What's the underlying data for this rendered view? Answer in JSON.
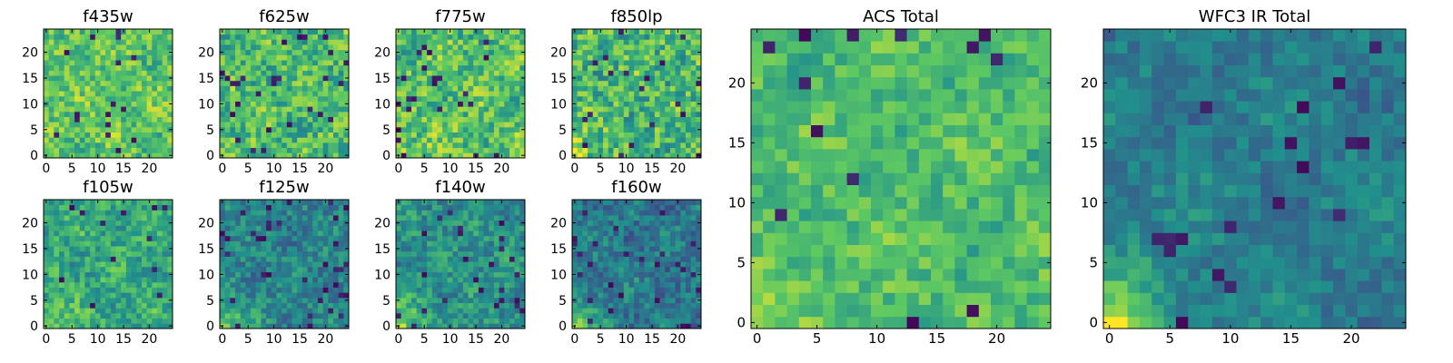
{
  "figure": {
    "colormap": "viridis",
    "colormap_stops": [
      "#440154",
      "#3b528b",
      "#21918c",
      "#5ec962",
      "#fde725"
    ]
  },
  "chart_data": [
    {
      "type": "heatmap",
      "title": "f435w",
      "grid_size": [
        25,
        25
      ],
      "x_ticks": [
        0,
        5,
        10,
        15,
        20
      ],
      "y_ticks": [
        0,
        5,
        10,
        15,
        20
      ],
      "x_tick_labels": [
        "0",
        "5",
        "10",
        "15",
        "20"
      ],
      "y_tick_labels": [
        "0",
        "5",
        "10",
        "15",
        "20"
      ],
      "xlim": [
        -0.5,
        24.5
      ],
      "ylim": [
        -0.5,
        24.5
      ],
      "level_mean": 0.72,
      "level_spread": 0.18,
      "corner_glow": 0.05,
      "dark_rate": 0.03,
      "seed": 11
    },
    {
      "type": "heatmap",
      "title": "f625w",
      "grid_size": [
        25,
        25
      ],
      "x_ticks": [
        0,
        5,
        10,
        15,
        20
      ],
      "y_ticks": [
        0,
        5,
        10,
        15,
        20
      ],
      "x_tick_labels": [
        "0",
        "5",
        "10",
        "15",
        "20"
      ],
      "y_tick_labels": [
        "0",
        "5",
        "10",
        "15",
        "20"
      ],
      "xlim": [
        -0.5,
        24.5
      ],
      "ylim": [
        -0.5,
        24.5
      ],
      "level_mean": 0.68,
      "level_spread": 0.2,
      "corner_glow": 0.18,
      "dark_rate": 0.04,
      "seed": 23
    },
    {
      "type": "heatmap",
      "title": "f775w",
      "grid_size": [
        25,
        25
      ],
      "x_ticks": [
        0,
        5,
        10,
        15,
        20
      ],
      "y_ticks": [
        0,
        5,
        10,
        15,
        20
      ],
      "x_tick_labels": [
        "0",
        "5",
        "10",
        "15",
        "20"
      ],
      "y_tick_labels": [
        "0",
        "5",
        "10",
        "15",
        "20"
      ],
      "xlim": [
        -0.5,
        24.5
      ],
      "ylim": [
        -0.5,
        24.5
      ],
      "level_mean": 0.7,
      "level_spread": 0.2,
      "corner_glow": 0.2,
      "dark_rate": 0.04,
      "seed": 37
    },
    {
      "type": "heatmap",
      "title": "f850lp",
      "grid_size": [
        25,
        25
      ],
      "x_ticks": [
        0,
        5,
        10,
        15,
        20
      ],
      "y_ticks": [
        0,
        5,
        10,
        15,
        20
      ],
      "x_tick_labels": [
        "0",
        "5",
        "10",
        "15",
        "20"
      ],
      "y_tick_labels": [
        "0",
        "5",
        "10",
        "15",
        "20"
      ],
      "xlim": [
        -0.5,
        24.5
      ],
      "ylim": [
        -0.5,
        24.5
      ],
      "level_mean": 0.66,
      "level_spread": 0.22,
      "corner_glow": 0.25,
      "dark_rate": 0.04,
      "seed": 41
    },
    {
      "type": "heatmap",
      "title": "f105w",
      "grid_size": [
        25,
        25
      ],
      "x_ticks": [
        0,
        5,
        10,
        15,
        20
      ],
      "y_ticks": [
        0,
        5,
        10,
        15,
        20
      ],
      "x_tick_labels": [
        "0",
        "5",
        "10",
        "15",
        "20"
      ],
      "y_tick_labels": [
        "0",
        "5",
        "10",
        "15",
        "20"
      ],
      "xlim": [
        -0.5,
        24.5
      ],
      "ylim": [
        -0.5,
        24.5
      ],
      "level_mean": 0.6,
      "level_spread": 0.16,
      "corner_glow": 0.3,
      "dark_rate": 0.02,
      "seed": 53
    },
    {
      "type": "heatmap",
      "title": "f125w",
      "grid_size": [
        25,
        25
      ],
      "x_ticks": [
        0,
        5,
        10,
        15,
        20
      ],
      "y_ticks": [
        0,
        5,
        10,
        15,
        20
      ],
      "x_tick_labels": [
        "0",
        "5",
        "10",
        "15",
        "20"
      ],
      "y_tick_labels": [
        "0",
        "5",
        "10",
        "15",
        "20"
      ],
      "xlim": [
        -0.5,
        24.5
      ],
      "ylim": [
        -0.5,
        24.5
      ],
      "level_mean": 0.45,
      "level_spread": 0.14,
      "corner_glow": 0.5,
      "dark_rate": 0.05,
      "seed": 67
    },
    {
      "type": "heatmap",
      "title": "f140w",
      "grid_size": [
        25,
        25
      ],
      "x_ticks": [
        0,
        5,
        10,
        15,
        20
      ],
      "y_ticks": [
        0,
        5,
        10,
        15,
        20
      ],
      "x_tick_labels": [
        "0",
        "5",
        "10",
        "15",
        "20"
      ],
      "y_tick_labels": [
        "0",
        "5",
        "10",
        "15",
        "20"
      ],
      "xlim": [
        -0.5,
        24.5
      ],
      "ylim": [
        -0.5,
        24.5
      ],
      "level_mean": 0.5,
      "level_spread": 0.15,
      "corner_glow": 0.45,
      "dark_rate": 0.04,
      "seed": 79
    },
    {
      "type": "heatmap",
      "title": "f160w",
      "grid_size": [
        25,
        25
      ],
      "x_ticks": [
        0,
        5,
        10,
        15,
        20
      ],
      "y_ticks": [
        0,
        5,
        10,
        15,
        20
      ],
      "x_tick_labels": [
        "0",
        "5",
        "10",
        "15",
        "20"
      ],
      "y_tick_labels": [
        "0",
        "5",
        "10",
        "15",
        "20"
      ],
      "xlim": [
        -0.5,
        24.5
      ],
      "ylim": [
        -0.5,
        24.5
      ],
      "level_mean": 0.4,
      "level_spread": 0.14,
      "corner_glow": 0.55,
      "dark_rate": 0.05,
      "seed": 83
    },
    {
      "type": "heatmap",
      "title": "ACS Total",
      "grid_size": [
        25,
        25
      ],
      "x_ticks": [
        0,
        5,
        10,
        15,
        20
      ],
      "y_ticks": [
        0,
        5,
        10,
        15,
        20
      ],
      "x_tick_labels": [
        "0",
        "5",
        "10",
        "15",
        "20"
      ],
      "y_tick_labels": [
        "0",
        "5",
        "10",
        "15",
        "20"
      ],
      "xlim": [
        -0.5,
        24.5
      ],
      "ylim": [
        -0.5,
        24.5
      ],
      "level_mean": 0.68,
      "level_spread": 0.13,
      "corner_glow": 0.22,
      "dark_rate": 0.025,
      "seed": 97
    },
    {
      "type": "heatmap",
      "title": "WFC3 IR Total",
      "grid_size": [
        25,
        25
      ],
      "x_ticks": [
        0,
        5,
        10,
        15,
        20
      ],
      "y_ticks": [
        0,
        5,
        10,
        15,
        20
      ],
      "x_tick_labels": [
        "0",
        "5",
        "10",
        "15",
        "20"
      ],
      "y_tick_labels": [
        "0",
        "5",
        "10",
        "15",
        "20"
      ],
      "xlim": [
        -0.5,
        24.5
      ],
      "ylim": [
        -0.5,
        24.5
      ],
      "level_mean": 0.42,
      "level_spread": 0.1,
      "corner_glow": 0.6,
      "dark_rate": 0.03,
      "seed": 101
    }
  ]
}
